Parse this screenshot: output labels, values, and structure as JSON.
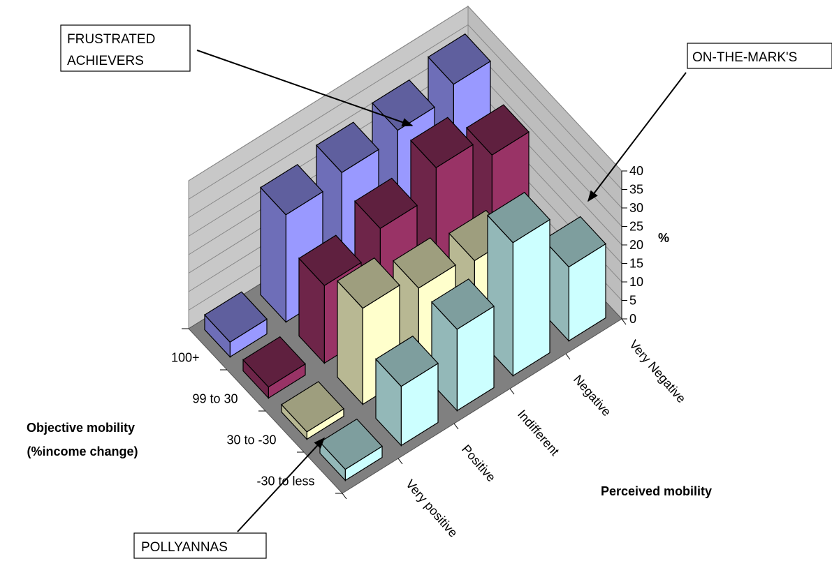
{
  "chart_data": {
    "type": "bar3d",
    "x_categories": [
      "Very positive",
      "Positive",
      "Indifferent",
      "Negative",
      "Very Negative"
    ],
    "y_categories": [
      "100+",
      "99 to 30",
      "30 to -30",
      "-30 to less"
    ],
    "xlabel": "Perceived mobility",
    "ylabel": "Objective mobility\n(%income change)",
    "zlabel": "%",
    "zlim": [
      0,
      40
    ],
    "z_ticks": [
      0,
      5,
      10,
      15,
      20,
      25,
      30,
      35,
      40
    ],
    "grid": true,
    "series": [
      {
        "name": "100+",
        "values": [
          4,
          29,
          31,
          33,
          36
        ]
      },
      {
        "name": "99 to 30",
        "values": [
          3,
          21,
          27,
          34,
          28
        ]
      },
      {
        "name": "30 to -30",
        "values": [
          2,
          26,
          22,
          20,
          0
        ]
      },
      {
        "name": "-30 to less",
        "values": [
          3,
          16,
          22,
          36,
          20
        ]
      }
    ],
    "annotations": [
      {
        "text": "FRUSTRATED\nACHIEVERS"
      },
      {
        "text": "ON-THE-MARK'S"
      },
      {
        "text": "POLLYANNAS"
      }
    ]
  },
  "colors": {
    "series": [
      "#9999FF",
      "#993366",
      "#FFFFCC",
      "#CCFFFF"
    ],
    "walls": "#C0C0C0",
    "floor": "#808080"
  }
}
